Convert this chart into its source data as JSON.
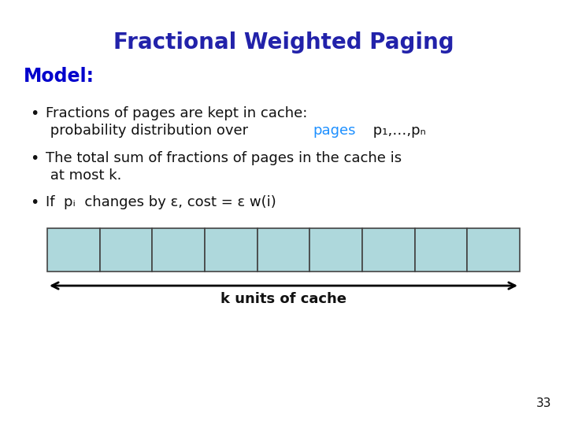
{
  "title": "Fractional Weighted Paging",
  "title_color": "#2222AA",
  "title_fontsize": 20,
  "model_label": "Model:",
  "model_color": "#0000CC",
  "model_fontsize": 17,
  "bullet1_line1": "Fractions of pages are kept in cache:",
  "bullet1_line2_prefix": " probability distribution over ",
  "bullet1_line2_pages": "pages",
  "bullet1_line2_suffix": " p₁,…,pₙ",
  "bullet2_line1": "The total sum of fractions of pages in the cache is",
  "bullet2_line2": " at most k.",
  "bullet3_line1": "If  pᵢ  changes by ε, cost = ε w(i)",
  "bullet_color": "#111111",
  "bullet_fontsize": 13,
  "pages_color": "#1E90FF",
  "cache_label": "k units of cache",
  "cache_label_fontsize": 13,
  "cache_label_color": "#111111",
  "num_cells": 9,
  "cell_fill_color": "#AED8DC",
  "cell_edge_color": "#444444",
  "page_number": "33",
  "bg_color": "#FFFFFF"
}
